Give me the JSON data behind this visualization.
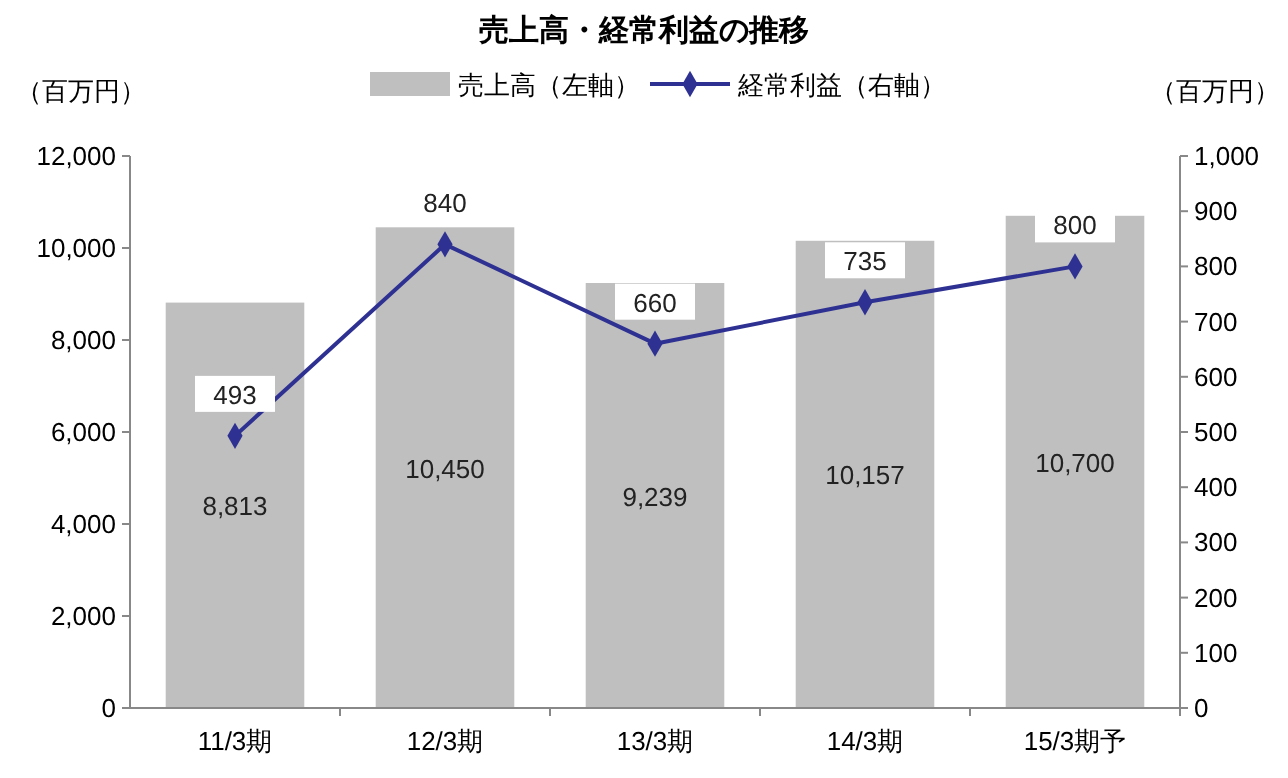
{
  "chart_data": {
    "type": "bar",
    "title": "売上高・経常利益の推移",
    "ylabel": "（百万円）",
    "y2label": "（百万円）",
    "categories": [
      "11/3期",
      "12/3期",
      "13/3期",
      "14/3期",
      "15/3期予"
    ],
    "series": [
      {
        "name": "売上高（左軸）",
        "color": "#bfbfbf",
        "values": [
          8813,
          10450,
          9239,
          10157,
          10700
        ],
        "value_labels": [
          "8,813",
          "10,450",
          "9,239",
          "10,157",
          "10,700"
        ]
      },
      {
        "name": "経常利益（右軸）",
        "type": "line",
        "axis": "y2",
        "color": "#2e3192",
        "marker": "diamond",
        "values": [
          493,
          840,
          660,
          735,
          800
        ],
        "value_labels": [
          "493",
          "840",
          "660",
          "735",
          "800"
        ]
      }
    ],
    "ylim": [
      0,
      12000
    ],
    "yticks": [
      0,
      {
        "value": 2000,
        "label": "2,000"
      },
      {
        "value": 4000,
        "label": "4,000"
      },
      {
        "value": 6000,
        "label": "6,000"
      },
      {
        "value": 8000,
        "label": "8,000"
      },
      {
        "value": 10000,
        "label": "10,000"
      },
      {
        "value": 12000,
        "label": "12,000"
      }
    ],
    "y2lim": [
      0,
      1000
    ],
    "y2ticks": [
      0,
      100,
      200,
      300,
      400,
      500,
      600,
      700,
      800,
      900,
      {
        "value": 1000,
        "label": "1,000"
      }
    ],
    "legend": "top",
    "grid": false
  }
}
